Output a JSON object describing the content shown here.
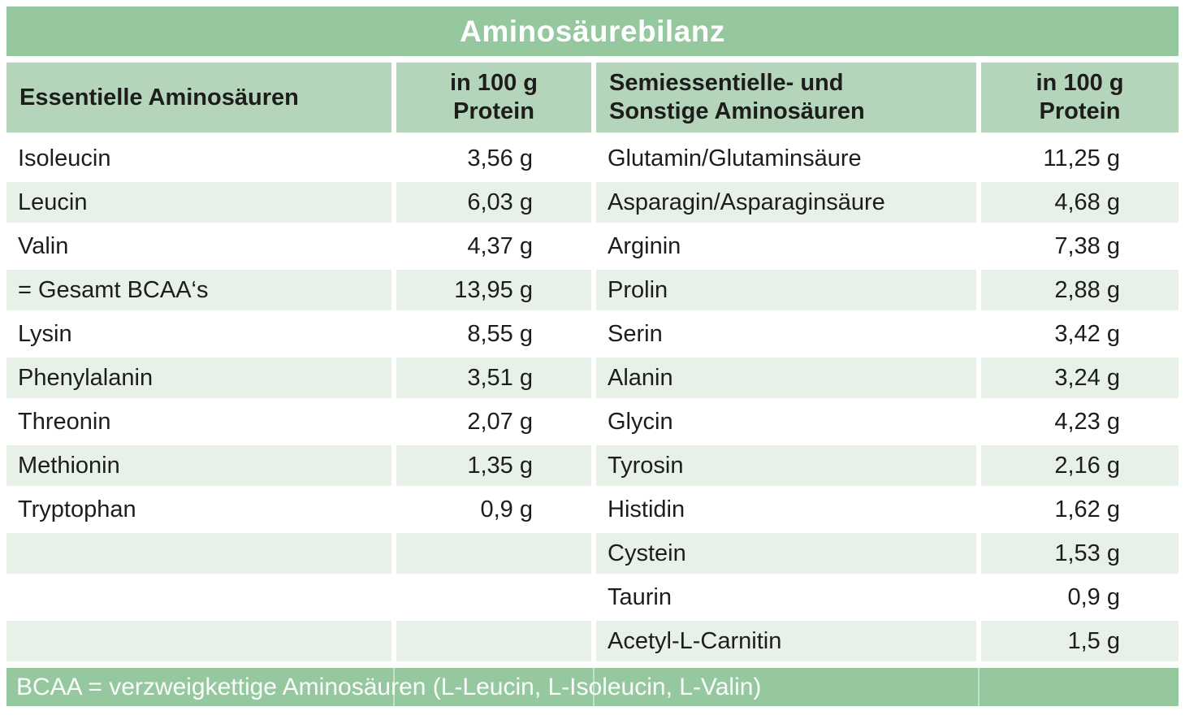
{
  "title": "Aminosäurebilanz",
  "footnote": "BCAA = verzweigkettige Aminosäuren (L-Leucin, L-Isoleucin, L-Valin)",
  "colors": {
    "band_green": "#96c8a0",
    "header_green": "#b4d5ba",
    "row_green": "#e8f1e7",
    "text": "#1d1d1b",
    "band_text": "#ffffff"
  },
  "table": {
    "headers": {
      "essential": "Essentielle Aminosäuren",
      "per100_line1": "in 100 g",
      "per100_line2": "Protein",
      "semi_line1": "Semiessentielle- und",
      "semi_line2": "Sonstige Aminosäuren"
    },
    "rows": [
      {
        "l_name": "Isoleucin",
        "l_val": "3,56 g",
        "r_name": "Glutamin/Glutaminsäure",
        "r_val": "11,25 g"
      },
      {
        "l_name": "Leucin",
        "l_val": "6,03 g",
        "r_name": "Asparagin/Asparaginsäure",
        "r_val": "4,68 g"
      },
      {
        "l_name": "Valin",
        "l_val": "4,37 g",
        "r_name": "Arginin",
        "r_val": "7,38 g"
      },
      {
        "l_name": "= Gesamt BCAA‘s",
        "l_val": "13,95 g",
        "r_name": "Prolin",
        "r_val": "2,88 g"
      },
      {
        "l_name": "Lysin",
        "l_val": "8,55 g",
        "r_name": "Serin",
        "r_val": "3,42 g"
      },
      {
        "l_name": "Phenylalanin",
        "l_val": "3,51 g",
        "r_name": "Alanin",
        "r_val": "3,24 g"
      },
      {
        "l_name": "Threonin",
        "l_val": "2,07 g",
        "r_name": "Glycin",
        "r_val": "4,23 g"
      },
      {
        "l_name": "Methionin",
        "l_val": "1,35 g",
        "r_name": "Tyrosin",
        "r_val": "2,16 g"
      },
      {
        "l_name": "Tryptophan",
        "l_val": "0,9 g",
        "r_name": "Histidin",
        "r_val": "1,62 g"
      },
      {
        "l_name": "",
        "l_val": "",
        "r_name": "Cystein",
        "r_val": "1,53 g"
      },
      {
        "l_name": "",
        "l_val": "",
        "r_name": "Taurin",
        "r_val": "0,9 g"
      },
      {
        "l_name": "",
        "l_val": "",
        "r_name": "Acetyl-L-Carnitin",
        "r_val": "1,5 g"
      }
    ]
  },
  "chart_data": {
    "type": "table",
    "title": "Aminosäurebilanz",
    "unit": "g in 100 g Protein",
    "series": [
      {
        "name": "Essentielle Aminosäuren",
        "points": [
          [
            "Isoleucin",
            3.56
          ],
          [
            "Leucin",
            6.03
          ],
          [
            "Valin",
            4.37
          ],
          [
            "= Gesamt BCAA‘s",
            13.95
          ],
          [
            "Lysin",
            8.55
          ],
          [
            "Phenylalanin",
            3.51
          ],
          [
            "Threonin",
            2.07
          ],
          [
            "Methionin",
            1.35
          ],
          [
            "Tryptophan",
            0.9
          ]
        ]
      },
      {
        "name": "Semiessentielle- und Sonstige Aminosäuren",
        "points": [
          [
            "Glutamin/Glutaminsäure",
            11.25
          ],
          [
            "Asparagin/Asparaginsäure",
            4.68
          ],
          [
            "Arginin",
            7.38
          ],
          [
            "Prolin",
            2.88
          ],
          [
            "Serin",
            3.42
          ],
          [
            "Alanin",
            3.24
          ],
          [
            "Glycin",
            4.23
          ],
          [
            "Tyrosin",
            2.16
          ],
          [
            "Histidin",
            1.62
          ],
          [
            "Cystein",
            1.53
          ],
          [
            "Taurin",
            0.9
          ],
          [
            "Acetyl-L-Carnitin",
            1.5
          ]
        ]
      }
    ],
    "footnote": "BCAA = verzweigkettige Aminosäuren (L-Leucin, L-Isoleucin, L-Valin)"
  }
}
